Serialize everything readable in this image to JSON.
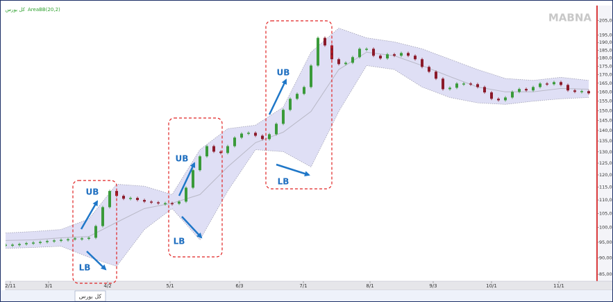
{
  "chart_data": {
    "type": "candlestick",
    "symbol": "کل بورس",
    "indicator": "AreaBB(20,2)",
    "watermark": "MABNA",
    "up_color": "#3a9a3a",
    "down_color": "#8b1a2a",
    "band_color": "#d9d9f3",
    "log_scale": true,
    "close": [
      94200,
      94200,
      94400,
      94700,
      94900,
      95100,
      95400,
      95600,
      95800,
      96000,
      96300,
      96300,
      96500,
      100500,
      107300,
      113500,
      111600,
      110500,
      110800,
      110000,
      109400,
      109100,
      108800,
      108800,
      108600,
      109400,
      114800,
      122000,
      128000,
      132600,
      130100,
      129500,
      132600,
      136600,
      138500,
      138900,
      137500,
      135900,
      138200,
      143300,
      150400,
      156300,
      159000,
      162800,
      175400,
      193100,
      188100,
      179300,
      176300,
      177100,
      180600,
      185900,
      185900,
      181500,
      179800,
      182400,
      181500,
      183200,
      181500,
      179300,
      174600,
      171700,
      167600,
      161600,
      162400,
      164800,
      164800,
      164400,
      162800,
      159800,
      156300,
      155500,
      157000,
      160100,
      161700,
      160900,
      162800,
      164800,
      164400,
      165600,
      164000,
      160900,
      160100,
      160500,
      159300
    ],
    "bands": {
      "x": [
        0,
        4,
        8,
        12,
        16,
        20,
        24,
        28,
        32,
        36,
        40,
        44,
        48,
        52,
        56,
        60,
        64,
        68,
        72,
        76,
        80,
        84
      ],
      "upper": [
        98100,
        98600,
        99300,
        103000,
        116200,
        115400,
        112100,
        131000,
        140900,
        142600,
        151800,
        183700,
        199700,
        193100,
        190400,
        185900,
        179300,
        173000,
        167700,
        166600,
        168400,
        166600
      ],
      "middle": [
        95600,
        95800,
        96500,
        96900,
        101800,
        106800,
        108800,
        112100,
        123400,
        134200,
        139200,
        149600,
        173000,
        183700,
        181500,
        175400,
        168800,
        162800,
        160100,
        160100,
        162000,
        161600
      ],
      "lower": [
        93000,
        93300,
        93700,
        90200,
        87400,
        99300,
        106800,
        95800,
        113500,
        131000,
        130100,
        123400,
        149600,
        175400,
        173000,
        162800,
        157000,
        154100,
        153300,
        155000,
        156300,
        157000
      ]
    },
    "xlim": [
      0,
      84
    ],
    "xticks": [
      {
        "value": 0.7,
        "label": "2/11"
      },
      {
        "value": 6.2,
        "label": "3/1"
      },
      {
        "value": 14.7,
        "label": "4/2"
      },
      {
        "value": 23.7,
        "label": "5/1"
      },
      {
        "value": 33.7,
        "label": "6/3"
      },
      {
        "value": 42.9,
        "label": "7/1"
      },
      {
        "value": 52.5,
        "label": "8/1"
      },
      {
        "value": 61.6,
        "label": "9/3"
      },
      {
        "value": 70,
        "label": "10/1"
      },
      {
        "value": 79.7,
        "label": "11/1"
      }
    ],
    "ylim": [
      83000,
      216000
    ],
    "yticks": [
      {
        "value": 85000,
        "label": "85,000"
      },
      {
        "value": 90000,
        "label": "90,000"
      },
      {
        "value": 95000,
        "label": "95,000"
      },
      {
        "value": 100000,
        "label": "100,000"
      },
      {
        "value": 105000,
        "label": "105,000"
      },
      {
        "value": 110000,
        "label": "110,000"
      },
      {
        "value": 115000,
        "label": "115,000"
      },
      {
        "value": 120000,
        "label": "120,000"
      },
      {
        "value": 125000,
        "label": "125,000"
      },
      {
        "value": 130000,
        "label": "130,000"
      },
      {
        "value": 135000,
        "label": "135,000"
      },
      {
        "value": 140000,
        "label": "140,000"
      },
      {
        "value": 145000,
        "label": "145,000"
      },
      {
        "value": 150000,
        "label": "150,000"
      },
      {
        "value": 155000,
        "label": "155,000"
      },
      {
        "value": 160000,
        "label": "160,000"
      },
      {
        "value": 165000,
        "label": "165,000"
      },
      {
        "value": 170000,
        "label": "170,000"
      },
      {
        "value": 175000,
        "label": "175,000"
      },
      {
        "value": 180000,
        "label": "180,000"
      },
      {
        "value": 185000,
        "label": "185,000"
      },
      {
        "value": 190000,
        "label": "190,000"
      },
      {
        "value": 195000,
        "label": "195,000"
      },
      {
        "value": 205000,
        "label": "205,000"
      }
    ],
    "annotations": [
      "UB",
      "LB",
      "UB",
      "LB",
      "UB",
      "LB"
    ]
  }
}
